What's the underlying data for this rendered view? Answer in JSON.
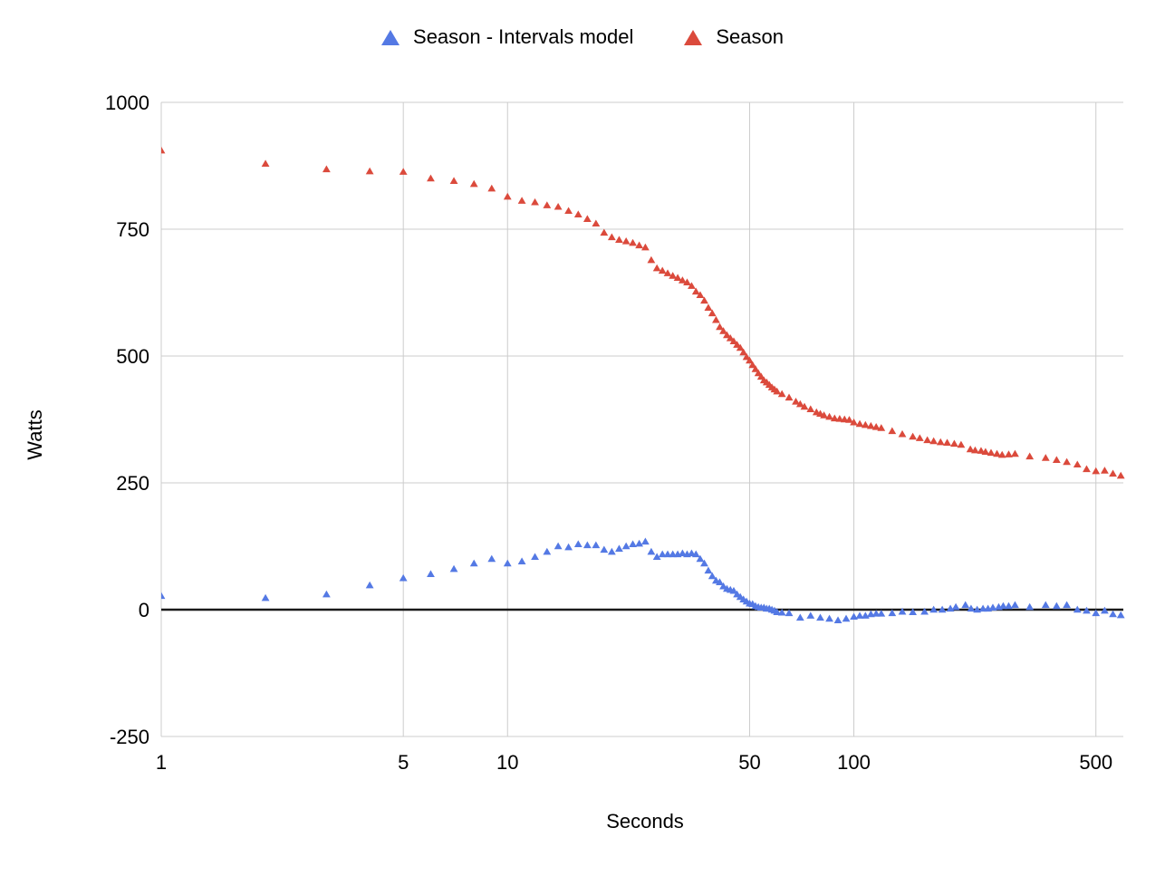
{
  "chart_data": {
    "type": "scatter",
    "title": "",
    "xlabel": "Seconds",
    "ylabel": "Watts",
    "x_scale": "log",
    "xlim": [
      1,
      600
    ],
    "ylim": [
      -250,
      1000
    ],
    "x_ticks": [
      1,
      5,
      10,
      50,
      100,
      500
    ],
    "y_ticks": [
      -250,
      0,
      250,
      500,
      750,
      1000
    ],
    "grid": true,
    "grid_color": "#cccccc",
    "zero_line_color": "#1a1a1a",
    "background": "#ffffff",
    "legend_position": "top",
    "marker": "triangle-up",
    "series": [
      {
        "name": "Season - Intervals model",
        "color": "#5479E4",
        "points": [
          [
            1,
            27
          ],
          [
            2,
            23
          ],
          [
            3,
            30
          ],
          [
            4,
            48
          ],
          [
            5,
            62
          ],
          [
            6,
            70
          ],
          [
            7,
            80
          ],
          [
            8,
            91
          ],
          [
            9,
            100
          ],
          [
            10,
            91
          ],
          [
            11,
            95
          ],
          [
            12,
            104
          ],
          [
            13,
            114
          ],
          [
            14,
            125
          ],
          [
            15,
            123
          ],
          [
            16,
            129
          ],
          [
            17,
            127
          ],
          [
            18,
            127
          ],
          [
            19,
            118
          ],
          [
            20,
            114
          ],
          [
            21,
            120
          ],
          [
            22,
            125
          ],
          [
            23,
            129
          ],
          [
            24,
            130
          ],
          [
            25,
            134
          ],
          [
            26,
            114
          ],
          [
            27,
            104
          ],
          [
            28,
            109
          ],
          [
            29,
            109
          ],
          [
            30,
            109
          ],
          [
            31,
            109
          ],
          [
            32,
            111
          ],
          [
            33,
            109
          ],
          [
            34,
            111
          ],
          [
            35,
            109
          ],
          [
            36,
            100
          ],
          [
            37,
            91
          ],
          [
            38,
            77
          ],
          [
            39,
            66
          ],
          [
            40,
            57
          ],
          [
            41,
            54
          ],
          [
            42,
            46
          ],
          [
            43,
            41
          ],
          [
            44,
            39
          ],
          [
            45,
            37
          ],
          [
            46,
            30
          ],
          [
            47,
            25
          ],
          [
            48,
            20
          ],
          [
            49,
            16
          ],
          [
            50,
            12
          ],
          [
            51,
            11
          ],
          [
            52,
            7
          ],
          [
            53,
            5
          ],
          [
            54,
            4
          ],
          [
            55,
            4
          ],
          [
            56,
            2
          ],
          [
            57,
            2
          ],
          [
            58,
            0
          ],
          [
            59,
            -2
          ],
          [
            60,
            -5
          ],
          [
            62,
            -6
          ],
          [
            65,
            -7
          ],
          [
            70,
            -16
          ],
          [
            75,
            -12
          ],
          [
            80,
            -16
          ],
          [
            85,
            -18
          ],
          [
            90,
            -21
          ],
          [
            95,
            -18
          ],
          [
            100,
            -14
          ],
          [
            104,
            -12
          ],
          [
            108,
            -12
          ],
          [
            112,
            -9
          ],
          [
            116,
            -8
          ],
          [
            120,
            -8
          ],
          [
            129,
            -7
          ],
          [
            138,
            -4
          ],
          [
            148,
            -5
          ],
          [
            160,
            -4
          ],
          [
            170,
            0
          ],
          [
            180,
            0
          ],
          [
            190,
            2
          ],
          [
            197,
            5
          ],
          [
            210,
            9
          ],
          [
            218,
            2
          ],
          [
            227,
            0
          ],
          [
            236,
            2
          ],
          [
            244,
            2
          ],
          [
            252,
            4
          ],
          [
            262,
            5
          ],
          [
            270,
            7
          ],
          [
            280,
            7
          ],
          [
            292,
            9
          ],
          [
            322,
            5
          ],
          [
            358,
            9
          ],
          [
            385,
            7
          ],
          [
            412,
            9
          ],
          [
            442,
            0
          ],
          [
            470,
            -2
          ],
          [
            500,
            -7
          ],
          [
            530,
            -2
          ],
          [
            560,
            -9
          ],
          [
            590,
            -11
          ]
        ]
      },
      {
        "name": "Season",
        "color": "#DB4A3C",
        "points": [
          [
            1,
            905
          ],
          [
            2,
            879
          ],
          [
            3,
            868
          ],
          [
            4,
            864
          ],
          [
            5,
            863
          ],
          [
            6,
            850
          ],
          [
            7,
            845
          ],
          [
            8,
            839
          ],
          [
            9,
            830
          ],
          [
            10,
            814
          ],
          [
            11,
            806
          ],
          [
            12,
            803
          ],
          [
            13,
            797
          ],
          [
            14,
            794
          ],
          [
            15,
            786
          ],
          [
            16,
            779
          ],
          [
            17,
            770
          ],
          [
            18,
            761
          ],
          [
            19,
            743
          ],
          [
            20,
            734
          ],
          [
            21,
            729
          ],
          [
            22,
            726
          ],
          [
            23,
            723
          ],
          [
            24,
            718
          ],
          [
            25,
            714
          ],
          [
            26,
            689
          ],
          [
            27,
            673
          ],
          [
            28,
            668
          ],
          [
            29,
            663
          ],
          [
            30,
            658
          ],
          [
            31,
            654
          ],
          [
            32,
            649
          ],
          [
            33,
            645
          ],
          [
            34,
            638
          ],
          [
            35,
            627
          ],
          [
            36,
            620
          ],
          [
            37,
            609
          ],
          [
            38,
            595
          ],
          [
            39,
            584
          ],
          [
            40,
            571
          ],
          [
            41,
            557
          ],
          [
            42,
            549
          ],
          [
            43,
            541
          ],
          [
            44,
            535
          ],
          [
            45,
            529
          ],
          [
            46,
            522
          ],
          [
            47,
            516
          ],
          [
            48,
            507
          ],
          [
            49,
            498
          ],
          [
            50,
            491
          ],
          [
            51,
            482
          ],
          [
            52,
            474
          ],
          [
            53,
            466
          ],
          [
            54,
            459
          ],
          [
            55,
            452
          ],
          [
            56,
            448
          ],
          [
            57,
            443
          ],
          [
            58,
            438
          ],
          [
            59,
            434
          ],
          [
            60,
            430
          ],
          [
            62,
            425
          ],
          [
            65,
            418
          ],
          [
            68,
            410
          ],
          [
            70,
            405
          ],
          [
            72,
            400
          ],
          [
            75,
            395
          ],
          [
            78,
            389
          ],
          [
            80,
            386
          ],
          [
            82,
            383
          ],
          [
            85,
            380
          ],
          [
            88,
            377
          ],
          [
            91,
            376
          ],
          [
            94,
            375
          ],
          [
            97,
            374
          ],
          [
            100,
            369
          ],
          [
            104,
            366
          ],
          [
            108,
            364
          ],
          [
            112,
            362
          ],
          [
            116,
            360
          ],
          [
            120,
            358
          ],
          [
            129,
            352
          ],
          [
            138,
            346
          ],
          [
            148,
            341
          ],
          [
            155,
            338
          ],
          [
            163,
            334
          ],
          [
            170,
            332
          ],
          [
            178,
            330
          ],
          [
            186,
            329
          ],
          [
            195,
            327
          ],
          [
            204,
            325
          ],
          [
            217,
            316
          ],
          [
            224,
            314
          ],
          [
            233,
            313
          ],
          [
            240,
            311
          ],
          [
            249,
            309
          ],
          [
            259,
            307
          ],
          [
            268,
            305
          ],
          [
            280,
            306
          ],
          [
            292,
            307
          ],
          [
            322,
            302
          ],
          [
            358,
            299
          ],
          [
            385,
            295
          ],
          [
            412,
            291
          ],
          [
            442,
            286
          ],
          [
            470,
            277
          ],
          [
            500,
            273
          ],
          [
            530,
            274
          ],
          [
            560,
            268
          ],
          [
            590,
            264
          ]
        ]
      }
    ]
  }
}
